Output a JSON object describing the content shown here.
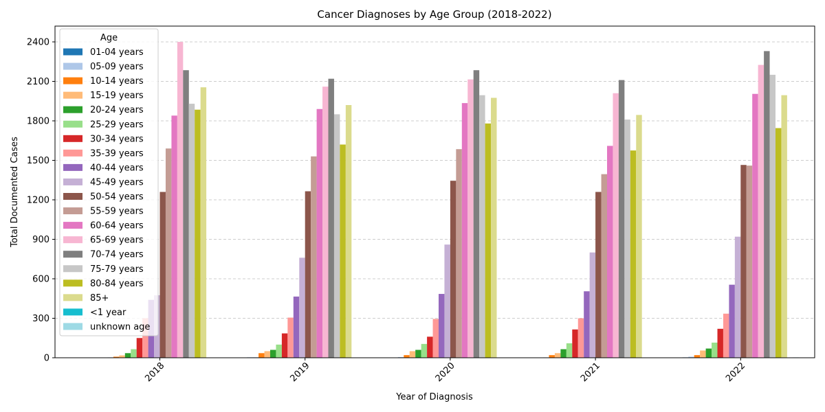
{
  "chart_data": {
    "type": "bar",
    "title": "Cancer Diagnoses by Age Group (2018-2022)",
    "xlabel": "Year of Diagnosis",
    "ylabel": "Total Documented Cases",
    "ylim": [
      0,
      2520
    ],
    "yticks": [
      0,
      300,
      600,
      900,
      1200,
      1500,
      1800,
      2100,
      2400
    ],
    "grid": "y, dashed",
    "legend": {
      "title": "Age",
      "placement": "top-left"
    },
    "categories": [
      "2018",
      "2019",
      "2020",
      "2021",
      "2022"
    ],
    "series": [
      {
        "name": "01-04 years",
        "color": "#1f77b4",
        "values": [
          2,
          3,
          2,
          2,
          3
        ]
      },
      {
        "name": "05-09 years",
        "color": "#aec7e8",
        "values": [
          3,
          4,
          5,
          3,
          8
        ]
      },
      {
        "name": "10-14 years",
        "color": "#ff7f0e",
        "values": [
          8,
          35,
          20,
          20,
          20
        ]
      },
      {
        "name": "15-19 years",
        "color": "#ffbb78",
        "values": [
          18,
          50,
          50,
          35,
          55
        ]
      },
      {
        "name": "20-24 years",
        "color": "#2ca02c",
        "values": [
          35,
          60,
          60,
          65,
          70
        ]
      },
      {
        "name": "25-29 years",
        "color": "#98df8a",
        "values": [
          65,
          100,
          105,
          110,
          115
        ]
      },
      {
        "name": "30-34 years",
        "color": "#d62728",
        "values": [
          150,
          185,
          160,
          215,
          220
        ]
      },
      {
        "name": "35-39 years",
        "color": "#ff9896",
        "values": [
          300,
          305,
          295,
          300,
          335
        ]
      },
      {
        "name": "40-44 years",
        "color": "#9467bd",
        "values": [
          440,
          465,
          485,
          505,
          555
        ]
      },
      {
        "name": "45-49 years",
        "color": "#c5b0d5",
        "values": [
          475,
          760,
          860,
          800,
          920
        ]
      },
      {
        "name": "50-54 years",
        "color": "#8c564b",
        "values": [
          1260,
          1265,
          1345,
          1260,
          1465
        ]
      },
      {
        "name": "55-59 years",
        "color": "#c49c94",
        "values": [
          1590,
          1530,
          1585,
          1395,
          1460
        ]
      },
      {
        "name": "60-64 years",
        "color": "#e377c2",
        "values": [
          1840,
          1890,
          1935,
          1610,
          2005
        ]
      },
      {
        "name": "65-69 years",
        "color": "#f7b6d2",
        "values": [
          2400,
          2060,
          2115,
          2010,
          2225
        ]
      },
      {
        "name": "70-74 years",
        "color": "#7f7f7f",
        "values": [
          2185,
          2120,
          2185,
          2110,
          2330
        ]
      },
      {
        "name": "75-79 years",
        "color": "#c7c7c7",
        "values": [
          1930,
          1850,
          1995,
          1810,
          2150
        ]
      },
      {
        "name": "80-84 years",
        "color": "#bcbd22",
        "values": [
          1885,
          1620,
          1780,
          1575,
          1745
        ]
      },
      {
        "name": "85+",
        "color": "#dbdb8d",
        "values": [
          2055,
          1920,
          1975,
          1845,
          1995
        ]
      },
      {
        "name": "<1 year",
        "color": "#17becf",
        "values": [
          0,
          0,
          0,
          0,
          0
        ]
      },
      {
        "name": "unknown age",
        "color": "#9edae5",
        "values": [
          0,
          0,
          0,
          0,
          3
        ]
      }
    ]
  }
}
